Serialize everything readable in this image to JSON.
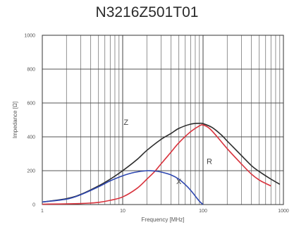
{
  "chart_data": {
    "type": "line",
    "title": "N3216Z501T01",
    "xlabel": "Frequency [MHz]",
    "ylabel": "Impedance [Ω]",
    "x_scale": "log",
    "xlim": [
      1,
      1000
    ],
    "ylim": [
      0,
      1000
    ],
    "grid": true,
    "x_ticks": [
      {
        "value": 1,
        "label": "1"
      },
      {
        "value": 10,
        "label": "10"
      },
      {
        "value": 100,
        "label": "100"
      },
      {
        "value": 1000,
        "label": "1000"
      }
    ],
    "y_ticks": [
      {
        "value": 0,
        "label": "0"
      },
      {
        "value": 200,
        "label": "200"
      },
      {
        "value": 400,
        "label": "400"
      },
      {
        "value": 600,
        "label": "600"
      },
      {
        "value": 800,
        "label": "800"
      },
      {
        "value": 1000,
        "label": "1000"
      }
    ],
    "series": [
      {
        "name": "Z",
        "color": "#2b2b2b",
        "label_at": {
          "x": 11,
          "y": 470
        },
        "points": [
          [
            1,
            15
          ],
          [
            2,
            35
          ],
          [
            3,
            60
          ],
          [
            5,
            110
          ],
          [
            7,
            150
          ],
          [
            10,
            200
          ],
          [
            15,
            265
          ],
          [
            20,
            320
          ],
          [
            30,
            385
          ],
          [
            40,
            420
          ],
          [
            50,
            450
          ],
          [
            70,
            475
          ],
          [
            90,
            480
          ],
          [
            100,
            478
          ],
          [
            130,
            455
          ],
          [
            170,
            410
          ],
          [
            200,
            375
          ],
          [
            300,
            290
          ],
          [
            400,
            230
          ],
          [
            500,
            195
          ],
          [
            700,
            150
          ],
          [
            900,
            120
          ]
        ]
      },
      {
        "name": "R",
        "color": "#d8323c",
        "label_at": {
          "x": 120,
          "y": 240
        },
        "points": [
          [
            1,
            2
          ],
          [
            3,
            6
          ],
          [
            5,
            13
          ],
          [
            7,
            25
          ],
          [
            10,
            45
          ],
          [
            15,
            95
          ],
          [
            20,
            150
          ],
          [
            25,
            195
          ],
          [
            30,
            240
          ],
          [
            40,
            310
          ],
          [
            50,
            365
          ],
          [
            70,
            430
          ],
          [
            90,
            465
          ],
          [
            100,
            470
          ],
          [
            120,
            450
          ],
          [
            150,
            400
          ],
          [
            200,
            330
          ],
          [
            300,
            240
          ],
          [
            400,
            180
          ],
          [
            500,
            145
          ],
          [
            600,
            125
          ],
          [
            700,
            110
          ]
        ]
      },
      {
        "name": "X",
        "color": "#2e47b0",
        "label_at": {
          "x": 50,
          "y": 120
        },
        "points": [
          [
            1,
            15
          ],
          [
            2,
            32
          ],
          [
            3,
            58
          ],
          [
            5,
            105
          ],
          [
            7,
            140
          ],
          [
            10,
            170
          ],
          [
            14,
            190
          ],
          [
            20,
            200
          ],
          [
            25,
            198
          ],
          [
            30,
            192
          ],
          [
            40,
            175
          ],
          [
            50,
            150
          ],
          [
            60,
            118
          ],
          [
            70,
            85
          ],
          [
            80,
            50
          ],
          [
            90,
            20
          ],
          [
            100,
            0
          ]
        ]
      }
    ]
  }
}
